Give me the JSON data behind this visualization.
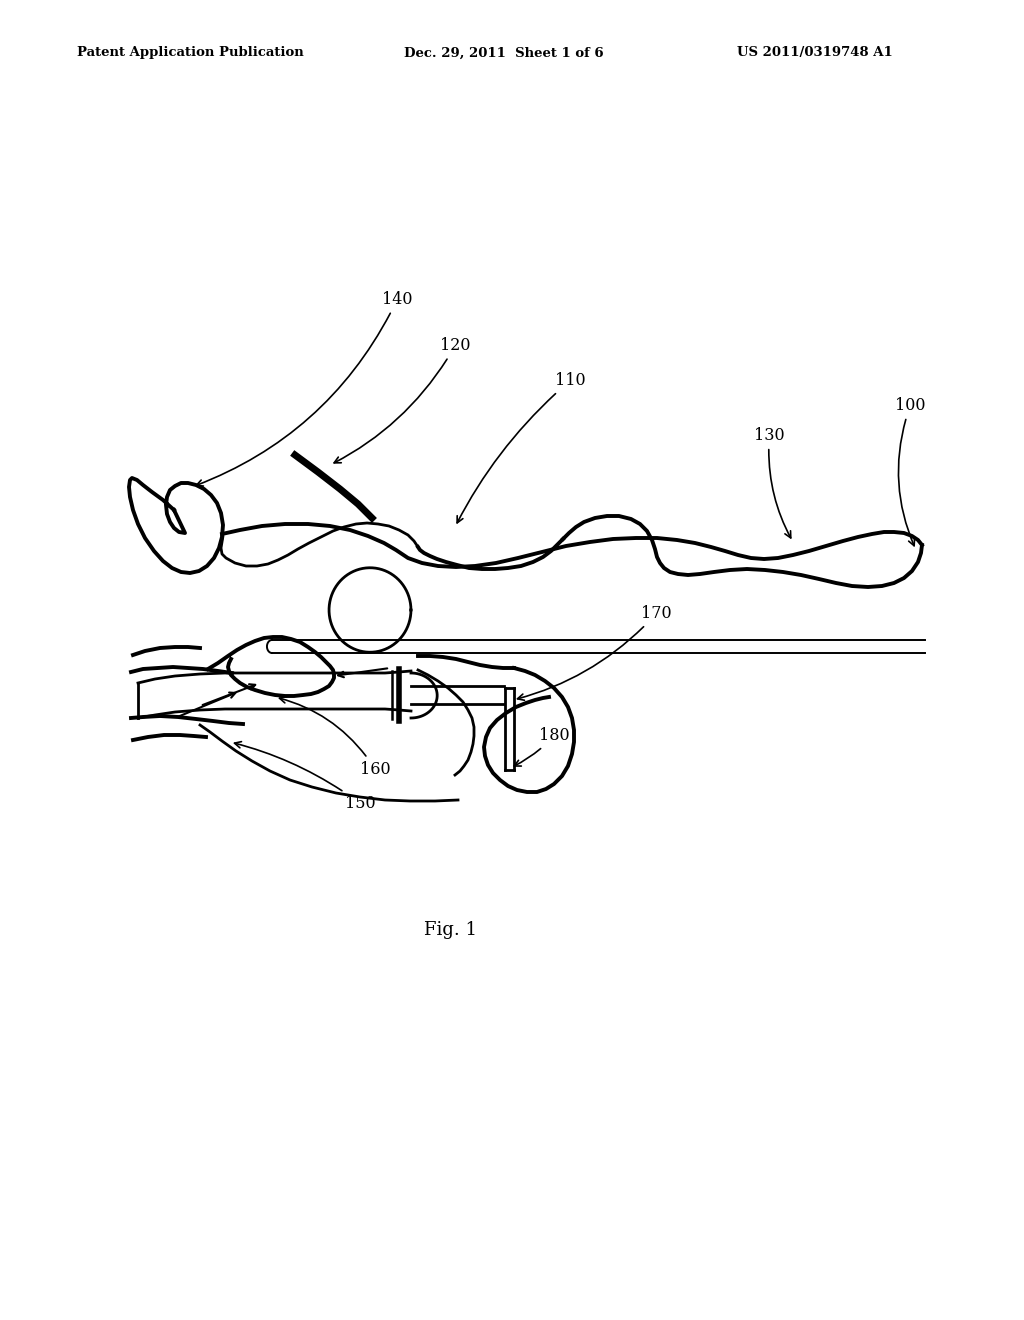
{
  "background_color": "#ffffff",
  "header_left": "Patent Application Publication",
  "header_center": "Dec. 29, 2011  Sheet 1 of 6",
  "header_right": "US 2011/0319748 A1",
  "fig_label": "Fig. 1",
  "line_color": "#000000",
  "text_color": "#000000",
  "lw_thick": 2.8,
  "lw_med": 2.0,
  "lw_thin": 1.4
}
